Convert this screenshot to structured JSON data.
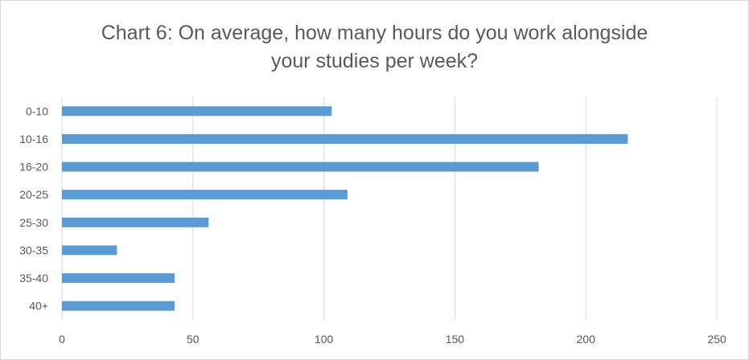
{
  "chart_data": {
    "type": "bar",
    "orientation": "horizontal",
    "title_lines": [
      "Chart 6: On average, how many hours do you work alongside",
      "your studies per week?"
    ],
    "categories": [
      "0-10",
      "10-16",
      "16-20",
      "20-25",
      "25-30",
      "30-35",
      "35-40",
      "40+"
    ],
    "values": [
      103,
      216,
      182,
      109,
      56,
      21,
      43,
      43
    ],
    "xlim": [
      0,
      250
    ],
    "xticks": [
      0,
      50,
      100,
      150,
      200,
      250
    ],
    "grid": "vertical",
    "legend": "none",
    "bar_color": "#5b9bd5",
    "grid_color": "#d9d9d9",
    "text_color": "#595959"
  }
}
